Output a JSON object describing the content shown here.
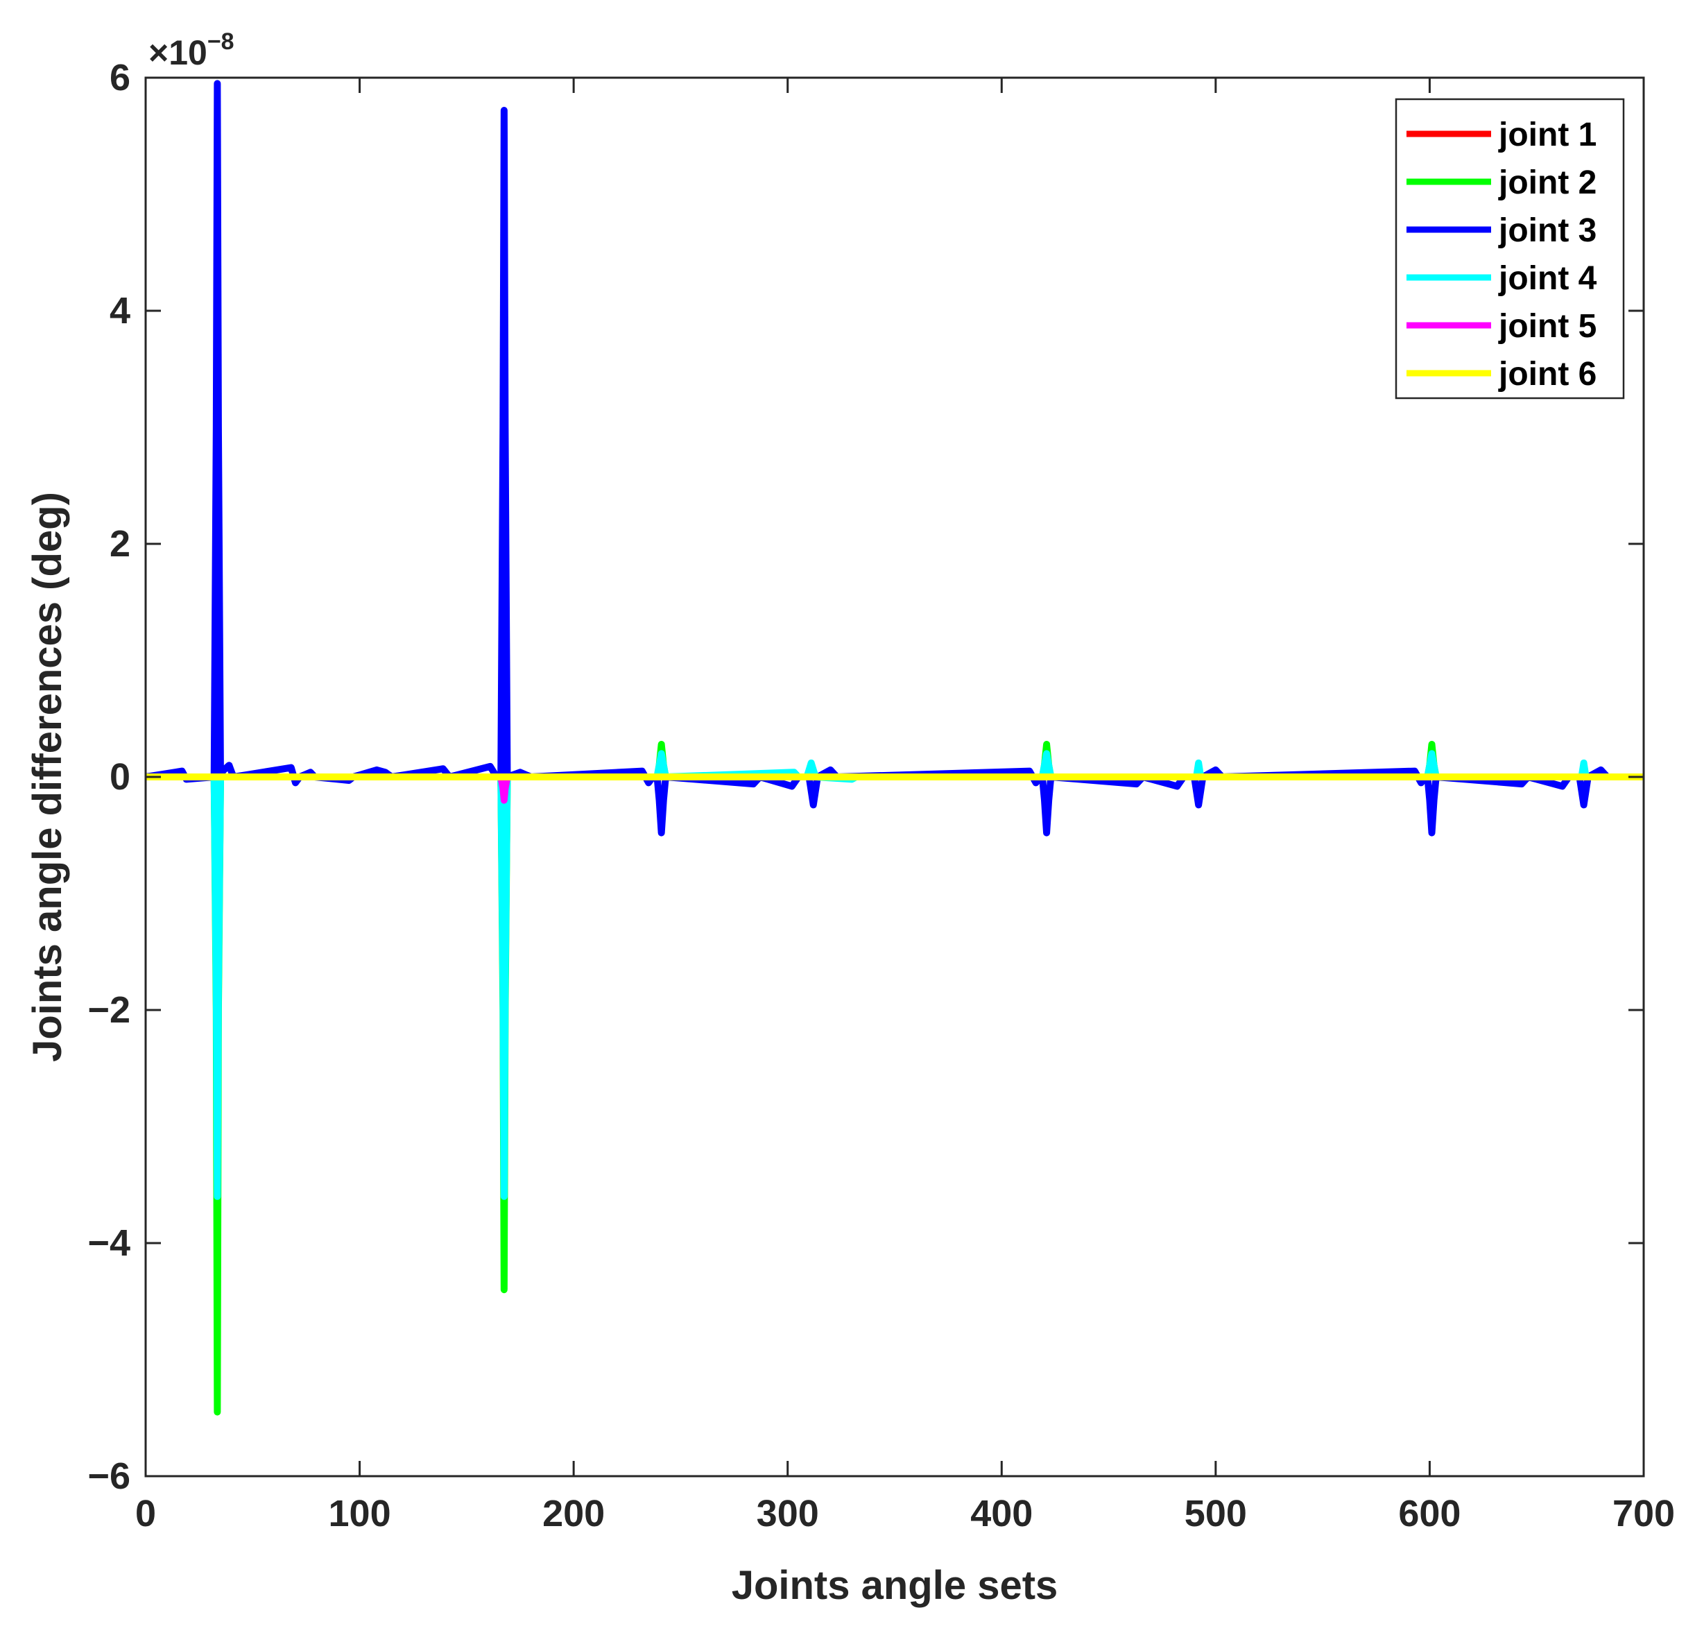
{
  "chart_data": {
    "type": "line",
    "title": "",
    "xlabel": "Joints angle sets",
    "ylabel": "Joints angle differences (deg)",
    "y_exponent_prefix": "×10",
    "y_exponent_power": "−8",
    "y_exponent": -8,
    "xlim": [
      0,
      700
    ],
    "ylim": [
      -6,
      6
    ],
    "x_ticks": [
      0,
      100,
      200,
      300,
      400,
      500,
      600,
      700
    ],
    "x_tick_labels": [
      "0",
      "100",
      "200",
      "300",
      "400",
      "500",
      "600",
      "700"
    ],
    "y_ticks": [
      -6,
      -4,
      -2,
      0,
      2,
      4,
      6
    ],
    "y_tick_labels": [
      "−6",
      "−4",
      "−2",
      "0",
      "2",
      "4",
      "6"
    ],
    "grid": false,
    "legend_position": "top-right",
    "series": [
      {
        "name": "joint 1",
        "color": "#ff0000",
        "points": [
          [
            0,
            0
          ],
          [
            700,
            0
          ]
        ]
      },
      {
        "name": "joint 2",
        "color": "#00ff00",
        "points": [
          [
            0,
            0
          ],
          [
            32,
            0
          ],
          [
            33,
            -2.0
          ],
          [
            33.5,
            -5.45
          ],
          [
            34,
            -2.0
          ],
          [
            35,
            0
          ],
          [
            166,
            0
          ],
          [
            167,
            -2.0
          ],
          [
            167.5,
            -4.4
          ],
          [
            168,
            -2.0
          ],
          [
            169,
            0
          ],
          [
            239,
            0
          ],
          [
            240,
            0.1
          ],
          [
            241,
            0.28
          ],
          [
            242,
            0.1
          ],
          [
            243,
            0
          ],
          [
            419,
            0
          ],
          [
            420,
            0.1
          ],
          [
            421,
            0.28
          ],
          [
            422,
            0.1
          ],
          [
            423,
            0
          ],
          [
            599,
            0
          ],
          [
            600,
            0.1
          ],
          [
            601,
            0.28
          ],
          [
            602,
            0.1
          ],
          [
            603,
            0
          ],
          [
            700,
            0
          ]
        ]
      },
      {
        "name": "joint 3",
        "color": "#0000ff",
        "points": [
          [
            0,
            0
          ],
          [
            17,
            0.05
          ],
          [
            19,
            -0.02
          ],
          [
            32,
            0
          ],
          [
            33,
            3.0
          ],
          [
            33.5,
            5.95
          ],
          [
            34,
            3.0
          ],
          [
            35,
            -0.02
          ],
          [
            36,
            0.05
          ],
          [
            39,
            0.1
          ],
          [
            41,
            0
          ],
          [
            68,
            0.08
          ],
          [
            70,
            -0.05
          ],
          [
            72,
            0
          ],
          [
            77,
            0.04
          ],
          [
            79,
            0
          ],
          [
            95,
            -0.03
          ],
          [
            97,
            0
          ],
          [
            108,
            0.06
          ],
          [
            112,
            0.04
          ],
          [
            115,
            0
          ],
          [
            139,
            0.07
          ],
          [
            142,
            0
          ],
          [
            161,
            0.09
          ],
          [
            164,
            0
          ],
          [
            166,
            0
          ],
          [
            167,
            3.0
          ],
          [
            167.5,
            5.72
          ],
          [
            168,
            3.0
          ],
          [
            169,
            0
          ],
          [
            175,
            0.04
          ],
          [
            180,
            0
          ],
          [
            232,
            0.05
          ],
          [
            235,
            -0.05
          ],
          [
            237,
            0
          ],
          [
            239,
            0
          ],
          [
            240,
            -0.2
          ],
          [
            241,
            -0.48
          ],
          [
            242,
            -0.2
          ],
          [
            243,
            0
          ],
          [
            284,
            -0.06
          ],
          [
            287,
            0
          ],
          [
            302,
            -0.08
          ],
          [
            305,
            0
          ],
          [
            310,
            0
          ],
          [
            311,
            -0.12
          ],
          [
            312,
            -0.24
          ],
          [
            313,
            -0.12
          ],
          [
            314,
            0
          ],
          [
            320,
            0.06
          ],
          [
            323,
            0
          ],
          [
            413,
            0.05
          ],
          [
            416,
            -0.05
          ],
          [
            418,
            0
          ],
          [
            419,
            0
          ],
          [
            420,
            -0.2
          ],
          [
            421,
            -0.48
          ],
          [
            422,
            -0.2
          ],
          [
            423,
            0
          ],
          [
            463,
            -0.06
          ],
          [
            466,
            0
          ],
          [
            482,
            -0.08
          ],
          [
            485,
            0
          ],
          [
            490,
            0
          ],
          [
            491,
            -0.12
          ],
          [
            492,
            -0.24
          ],
          [
            493,
            -0.12
          ],
          [
            494,
            0
          ],
          [
            500,
            0.06
          ],
          [
            503,
            0
          ],
          [
            593,
            0.05
          ],
          [
            596,
            -0.05
          ],
          [
            598,
            0
          ],
          [
            599,
            0
          ],
          [
            600,
            -0.2
          ],
          [
            601,
            -0.48
          ],
          [
            602,
            -0.2
          ],
          [
            603,
            0
          ],
          [
            643,
            -0.06
          ],
          [
            646,
            0
          ],
          [
            662,
            -0.08
          ],
          [
            665,
            0
          ],
          [
            670,
            0
          ],
          [
            671,
            -0.12
          ],
          [
            672,
            -0.24
          ],
          [
            673,
            -0.12
          ],
          [
            674,
            0
          ],
          [
            680,
            0.06
          ],
          [
            683,
            0
          ],
          [
            700,
            0
          ]
        ]
      },
      {
        "name": "joint 4",
        "color": "#00ffff",
        "points": [
          [
            0,
            0
          ],
          [
            32,
            0
          ],
          [
            33,
            -1.8
          ],
          [
            33.5,
            -3.6
          ],
          [
            34,
            -1.8
          ],
          [
            35,
            0
          ],
          [
            166,
            0
          ],
          [
            167,
            -1.8
          ],
          [
            167.5,
            -3.6
          ],
          [
            168,
            -1.8
          ],
          [
            169,
            0
          ],
          [
            239,
            0
          ],
          [
            240,
            0.1
          ],
          [
            241,
            0.2
          ],
          [
            242,
            0.1
          ],
          [
            243,
            0
          ],
          [
            303,
            0.04
          ],
          [
            305,
            0
          ],
          [
            309,
            0
          ],
          [
            311,
            0.12
          ],
          [
            313,
            0
          ],
          [
            330,
            -0.02
          ],
          [
            332,
            0
          ],
          [
            419,
            0
          ],
          [
            420,
            0.1
          ],
          [
            421,
            0.2
          ],
          [
            422,
            0.1
          ],
          [
            423,
            0
          ],
          [
            491,
            0
          ],
          [
            492,
            0.12
          ],
          [
            493,
            0
          ],
          [
            599,
            0
          ],
          [
            600,
            0.1
          ],
          [
            601,
            0.2
          ],
          [
            602,
            0.1
          ],
          [
            603,
            0
          ],
          [
            671,
            0
          ],
          [
            672,
            0.12
          ],
          [
            673,
            0
          ],
          [
            700,
            0
          ]
        ]
      },
      {
        "name": "joint 5",
        "color": "#ff00ff",
        "points": [
          [
            0,
            0
          ],
          [
            166,
            0
          ],
          [
            167,
            -0.1
          ],
          [
            167.5,
            -0.2
          ],
          [
            168,
            -0.1
          ],
          [
            169,
            0
          ],
          [
            700,
            0
          ]
        ]
      },
      {
        "name": "joint 6",
        "color": "#ffff00",
        "points": [
          [
            0,
            0
          ],
          [
            700,
            0
          ]
        ]
      }
    ]
  }
}
